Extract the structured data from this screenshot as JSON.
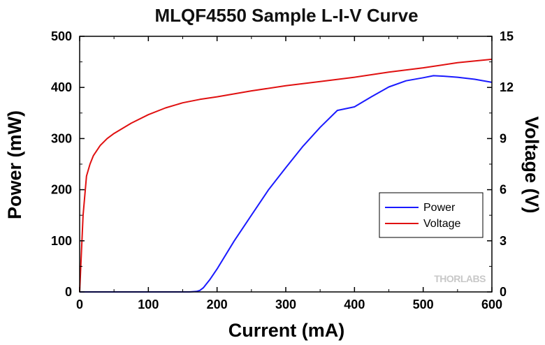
{
  "chart_data": {
    "type": "line",
    "title": "MLQF4550 Sample L-I-V Curve",
    "xlabel": "Current (mA)",
    "ylabel": "Power (mW)",
    "y2label": "Voltage (V)",
    "xlim": [
      0,
      600
    ],
    "ylim": [
      0,
      500
    ],
    "y2lim": [
      0,
      15
    ],
    "xticks": [
      "0",
      "100",
      "200",
      "300",
      "400",
      "500",
      "600"
    ],
    "yticks": [
      "0",
      "100",
      "200",
      "300",
      "400",
      "500"
    ],
    "y2ticks": [
      "0",
      "3",
      "6",
      "9",
      "12",
      "15"
    ],
    "grid": false,
    "legend_position": "lower-right",
    "watermark": "THORLABS",
    "series": [
      {
        "name": "Power",
        "axis": "left",
        "color": "#1a1aff",
        "x": [
          0,
          100,
          160,
          170,
          175,
          180,
          190,
          200,
          225,
          250,
          275,
          300,
          325,
          350,
          375,
          400,
          425,
          450,
          475,
          500,
          515,
          530,
          550,
          575,
          600
        ],
        "y": [
          0,
          0,
          0,
          1,
          3,
          8,
          25,
          45,
          100,
          150,
          200,
          243,
          285,
          322,
          355,
          362,
          382,
          401,
          413,
          419,
          423,
          422,
          420,
          416,
          410
        ]
      },
      {
        "name": "Voltage",
        "axis": "right",
        "color": "#e01010",
        "x": [
          0,
          5,
          10,
          15,
          20,
          30,
          40,
          50,
          75,
          100,
          125,
          150,
          175,
          200,
          250,
          300,
          350,
          400,
          450,
          500,
          550,
          600
        ],
        "y": [
          0,
          4.5,
          6.8,
          7.5,
          8.0,
          8.6,
          9.0,
          9.3,
          9.9,
          10.4,
          10.8,
          11.1,
          11.3,
          11.45,
          11.8,
          12.1,
          12.35,
          12.6,
          12.9,
          13.15,
          13.45,
          13.65
        ]
      }
    ]
  }
}
